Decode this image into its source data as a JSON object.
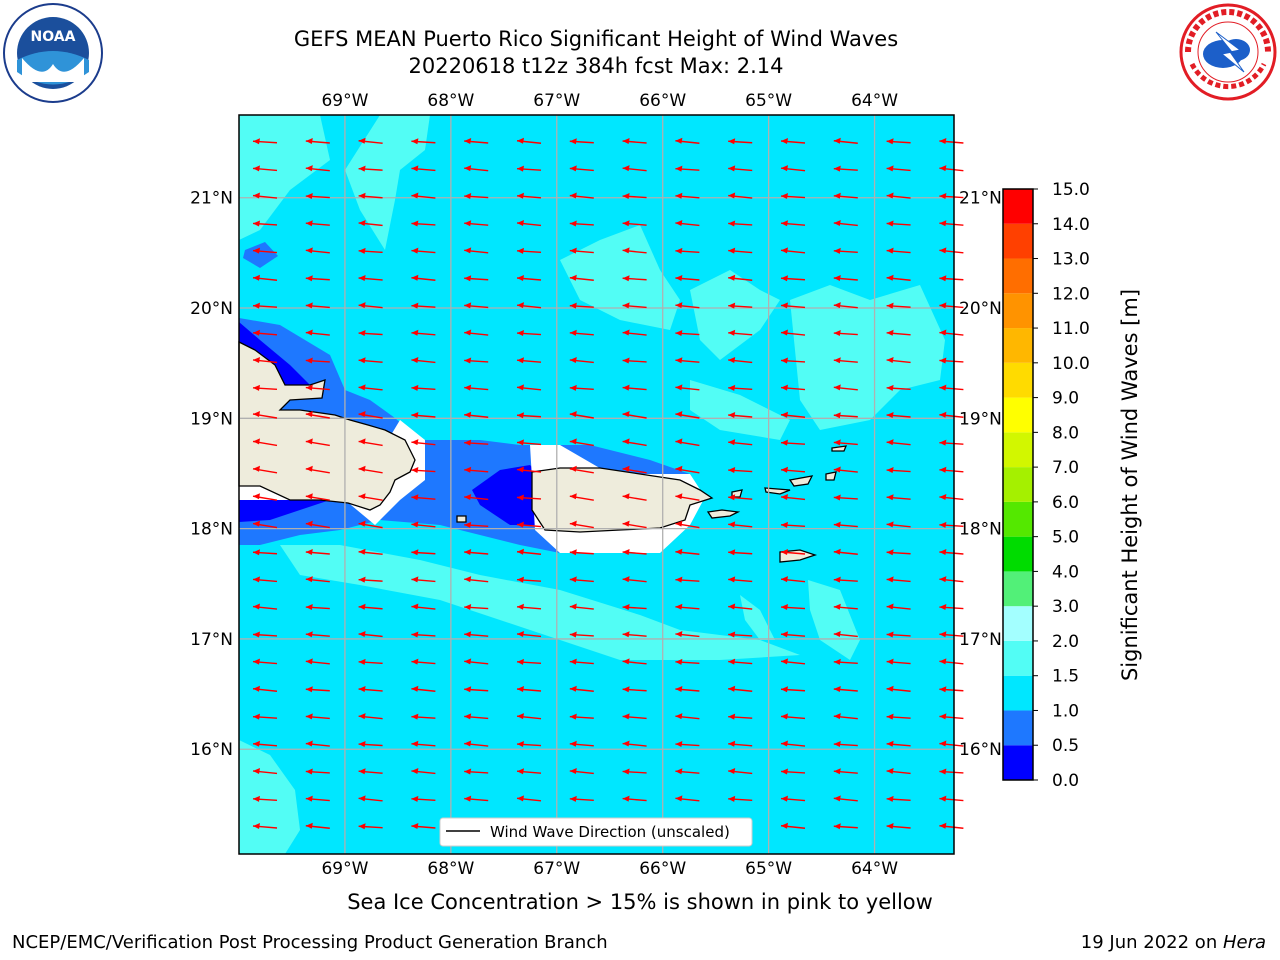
{
  "title_line1": "GEFS MEAN Puerto Rico Significant Height of Wind Waves",
  "title_line2": "20220618 t12z 384h fcst   Max: 2.14",
  "logos": {
    "left": "NOAA",
    "right": "National Weather Service"
  },
  "map": {
    "lon_labels": [
      "69°W",
      "68°W",
      "67°W",
      "66°W",
      "65°W",
      "64°W"
    ],
    "lat_labels": [
      "21°N",
      "20°N",
      "19°N",
      "18°N",
      "17°N",
      "16°N"
    ],
    "lon_range": [
      -70,
      -63.25
    ],
    "lat_range": [
      15.05,
      21.75
    ],
    "land_color": "#eeecdc",
    "arrow_color": "#ff0000",
    "legend_text": "Wind Wave Direction (unscaled)"
  },
  "colorbar": {
    "label": "Significant Height of Wind Waves [m]",
    "ticks": [
      "0.0",
      "0.5",
      "1.0",
      "1.5",
      "2.0",
      "3.0",
      "4.0",
      "5.0",
      "6.0",
      "7.0",
      "8.0",
      "9.0",
      "10.0",
      "11.0",
      "12.0",
      "13.0",
      "14.0",
      "15.0"
    ],
    "colors": [
      "#0000ff",
      "#1e78ff",
      "#00e7ff",
      "#52fdf5",
      "#a3ffff",
      "#52f078",
      "#00dc00",
      "#54e800",
      "#a5f000",
      "#d2f700",
      "#ffff00",
      "#ffdb00",
      "#ffb700",
      "#ff9300",
      "#ff6e00",
      "#ff4000",
      "#ff0000"
    ]
  },
  "sea_ice_note": "Sea Ice Concentration > 15% is shown in pink to yellow",
  "footer_left": "NCEP/EMC/Verification Post Processing Product Generation Branch",
  "footer_right_prefix": "19 Jun 2022 on ",
  "footer_right_host": "Hera"
}
